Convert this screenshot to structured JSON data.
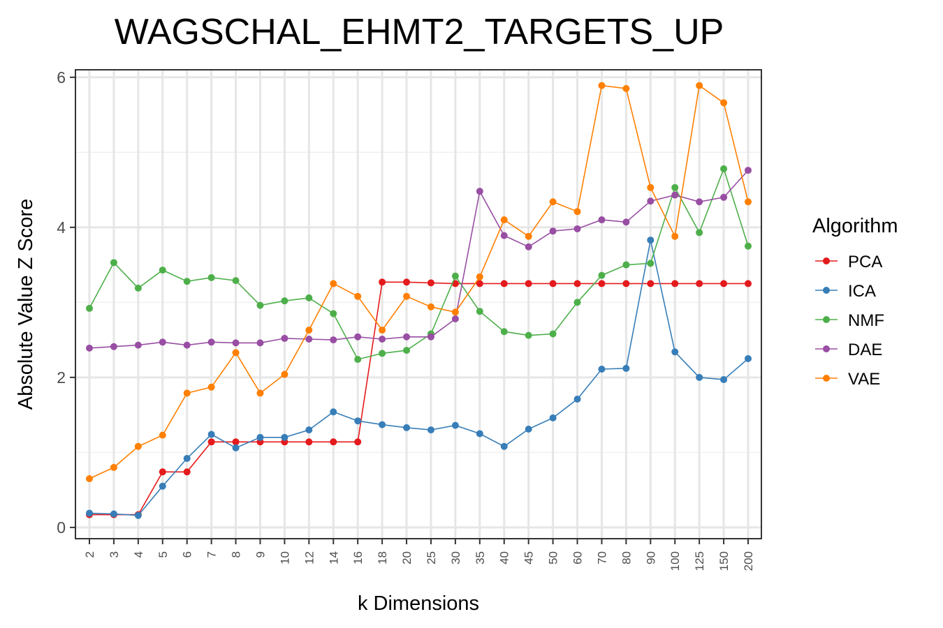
{
  "chart_data": {
    "type": "line",
    "title": "WAGSCHAL_EHMT2_TARGETS_UP",
    "xlabel": "k Dimensions",
    "ylabel": "Absolute Value Z Score",
    "categories": [
      "2",
      "3",
      "4",
      "5",
      "6",
      "7",
      "8",
      "9",
      "10",
      "12",
      "14",
      "16",
      "18",
      "20",
      "25",
      "30",
      "35",
      "40",
      "45",
      "50",
      "60",
      "70",
      "80",
      "90",
      "100",
      "125",
      "150",
      "200"
    ],
    "ylim": [
      -0.15,
      6.1
    ],
    "yticks": [
      0,
      2,
      4,
      6
    ],
    "grid": true,
    "legend": {
      "title": "Algorithm",
      "position": "right"
    },
    "series": [
      {
        "name": "PCA",
        "color": "#E41A1C",
        "values": [
          0.17,
          0.17,
          0.17,
          0.74,
          0.74,
          1.14,
          1.14,
          1.14,
          1.14,
          1.14,
          1.14,
          1.14,
          3.27,
          3.27,
          3.26,
          3.25,
          3.25,
          3.25,
          3.25,
          3.25,
          3.25,
          3.25,
          3.25,
          3.25,
          3.25,
          3.25,
          3.25,
          3.25
        ]
      },
      {
        "name": "ICA",
        "color": "#377EB8",
        "values": [
          0.19,
          0.18,
          0.16,
          0.55,
          0.92,
          1.24,
          1.06,
          1.2,
          1.2,
          1.3,
          1.54,
          1.42,
          1.37,
          1.33,
          1.3,
          1.36,
          1.25,
          1.08,
          1.31,
          1.46,
          1.71,
          2.11,
          2.12,
          3.83,
          2.34,
          2.0,
          1.97,
          2.25
        ]
      },
      {
        "name": "NMF",
        "color": "#4DAF4A",
        "values": [
          2.92,
          3.53,
          3.19,
          3.43,
          3.28,
          3.33,
          3.29,
          2.96,
          3.02,
          3.06,
          2.85,
          2.24,
          2.32,
          2.36,
          2.58,
          3.35,
          2.88,
          2.61,
          2.56,
          2.58,
          3.0,
          3.36,
          3.5,
          3.52,
          4.53,
          3.93,
          4.78,
          3.75
        ]
      },
      {
        "name": "DAE",
        "color": "#984EA3",
        "values": [
          2.39,
          2.41,
          2.43,
          2.47,
          2.43,
          2.47,
          2.46,
          2.46,
          2.52,
          2.51,
          2.5,
          2.54,
          2.51,
          2.54,
          2.54,
          2.78,
          4.48,
          3.89,
          3.74,
          3.95,
          3.98,
          4.1,
          4.07,
          4.35,
          4.43,
          4.34,
          4.4,
          4.76
        ]
      },
      {
        "name": "VAE",
        "color": "#FF7F00",
        "values": [
          0.65,
          0.8,
          1.08,
          1.23,
          1.79,
          1.87,
          2.33,
          1.79,
          2.04,
          2.63,
          3.25,
          3.08,
          2.63,
          3.08,
          2.94,
          2.87,
          3.34,
          4.1,
          3.88,
          4.34,
          4.21,
          5.89,
          5.85,
          4.53,
          3.88,
          5.89,
          5.66,
          4.34
        ]
      }
    ]
  }
}
